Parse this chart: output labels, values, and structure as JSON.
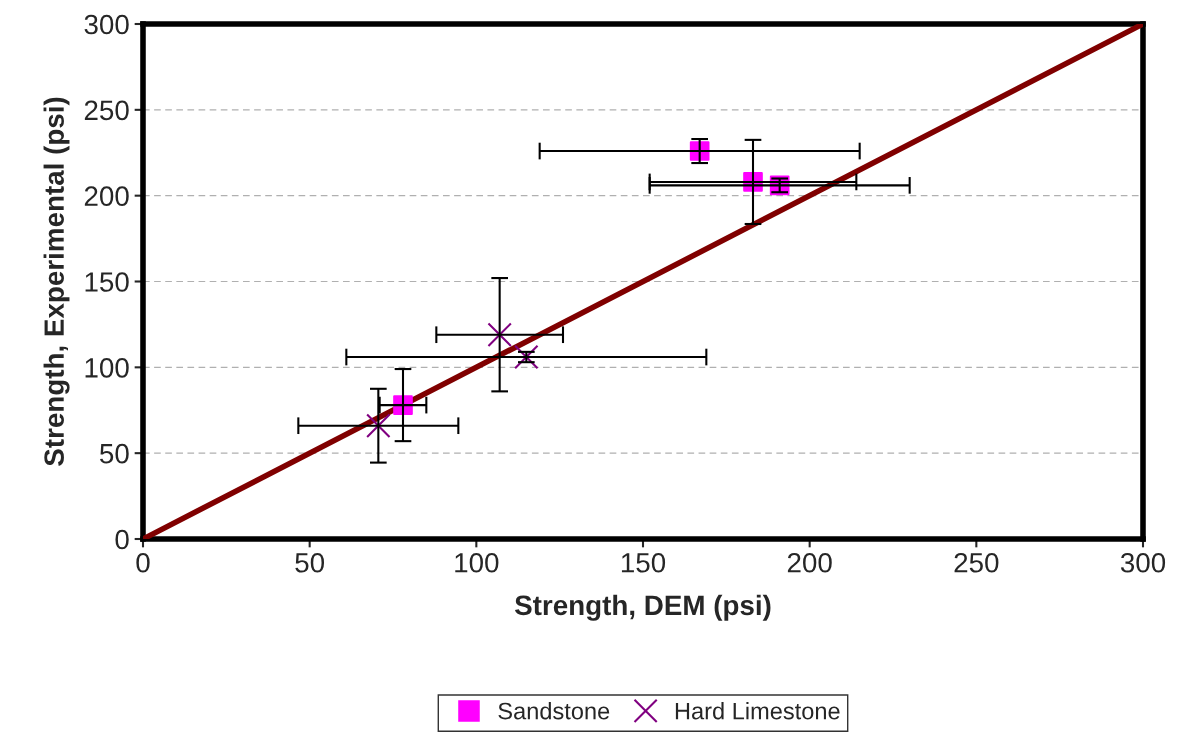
{
  "chart_data": {
    "type": "scatter",
    "xlabel": "Strength, DEM (psi)",
    "ylabel": "Strength, Experimental (psi)",
    "xlim": [
      0,
      300
    ],
    "ylim": [
      0,
      300
    ],
    "xticks": [
      0,
      50,
      100,
      150,
      200,
      250,
      300
    ],
    "yticks": [
      0,
      50,
      100,
      150,
      200,
      250,
      300
    ],
    "grid": "y",
    "legend": "bottom",
    "series": [
      {
        "name": "Sandstone",
        "color": "#ff00ff",
        "marker": "square",
        "x": [
          167,
          183,
          191,
          78
        ],
        "values": [
          226,
          208,
          206,
          78
        ],
        "errors": [
          7,
          24.5,
          4,
          21
        ],
        "xerrors": [
          48,
          31,
          39,
          7
        ]
      },
      {
        "name": "Hard Limestone",
        "color": "#800080",
        "marker": "cross",
        "x": [
          70.6,
          107,
          115
        ],
        "values": [
          66,
          119,
          106
        ],
        "errors": [
          21.5,
          33,
          3
        ],
        "xerrors": [
          24,
          19,
          54
        ]
      },
      {
        "type": "line",
        "color": "#800000",
        "marker": "none",
        "line_style": "solid",
        "x": [
          0,
          300
        ],
        "values": [
          0,
          300
        ]
      }
    ]
  }
}
